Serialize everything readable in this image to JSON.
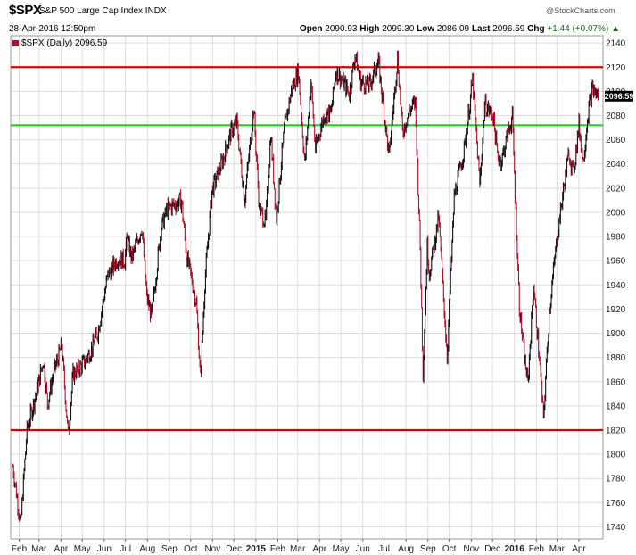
{
  "header": {
    "symbol": "$SPX",
    "description": "S&P 500 Large Cap Index INDX",
    "credit": "@StockCharts.com",
    "date": "28-Apr-2016 12:50pm",
    "open_label": "Open",
    "open": "2090.93",
    "high_label": "High",
    "high": "2099.30",
    "low_label": "Low",
    "low": "2086.09",
    "last_label": "Last",
    "last": "2096.59",
    "chg_label": "Chg",
    "chg": "+1.44 (+0.07%)",
    "legend": "$SPX (Daily) 2096.59",
    "last_tag": "2096.59"
  },
  "colors": {
    "up": "#111111",
    "down": "#b0102a",
    "resistance": "#e00000",
    "support_mid": "#22cc22",
    "support_low": "#e00000",
    "grid": "#dddddd"
  },
  "chart_data": {
    "type": "line",
    "title": "$SPX (Daily)",
    "y_axis_side": "right",
    "ylim": [
      1730,
      2146
    ],
    "y_ticks": [
      1740,
      1760,
      1780,
      1800,
      1820,
      1840,
      1860,
      1880,
      1900,
      1920,
      1940,
      1960,
      1980,
      2000,
      2020,
      2040,
      2060,
      2080,
      2100,
      2120,
      2140
    ],
    "x_ticks": [
      "Feb",
      "Mar",
      "Apr",
      "May",
      "Jun",
      "Jul",
      "Aug",
      "Sep",
      "Oct",
      "Nov",
      "Dec",
      "2015",
      "Feb",
      "Mar",
      "Apr",
      "May",
      "Jun",
      "Jul",
      "Aug",
      "Sep",
      "Oct",
      "Nov",
      "Dec",
      "2016",
      "Feb",
      "Mar",
      "Apr"
    ],
    "x_tick_dates": [
      "2014-02-01",
      "2014-03-01",
      "2014-04-01",
      "2014-05-01",
      "2014-06-01",
      "2014-07-01",
      "2014-08-01",
      "2014-09-01",
      "2014-10-01",
      "2014-11-01",
      "2014-12-01",
      "2015-01-01",
      "2015-02-01",
      "2015-03-01",
      "2015-04-01",
      "2015-05-01",
      "2015-06-01",
      "2015-07-01",
      "2015-08-01",
      "2015-09-01",
      "2015-10-01",
      "2015-11-01",
      "2015-12-01",
      "2016-01-01",
      "2016-02-01",
      "2016-03-01",
      "2016-04-01"
    ],
    "x_range": [
      "2014-01-20",
      "2016-05-05"
    ],
    "grid": true,
    "horizontal_lines": [
      {
        "value": 2120,
        "color": "red"
      },
      {
        "value": 2072,
        "color": "green"
      },
      {
        "value": 1820,
        "color": "red"
      }
    ],
    "series": [
      {
        "name": "$SPX",
        "x": [
          "2014-01-23",
          "2014-02-03",
          "2014-02-12",
          "2014-02-28",
          "2014-03-07",
          "2014-03-13",
          "2014-03-21",
          "2014-04-02",
          "2014-04-11",
          "2014-04-18",
          "2014-04-28",
          "2014-05-06",
          "2014-05-15",
          "2014-05-23",
          "2014-06-06",
          "2014-06-20",
          "2014-06-30",
          "2014-07-03",
          "2014-07-10",
          "2014-07-24",
          "2014-07-31",
          "2014-08-07",
          "2014-08-20",
          "2014-08-29",
          "2014-09-18",
          "2014-09-25",
          "2014-10-02",
          "2014-10-09",
          "2014-10-15",
          "2014-10-21",
          "2014-10-31",
          "2014-11-13",
          "2014-11-28",
          "2014-12-05",
          "2014-12-16",
          "2014-12-29",
          "2015-01-06",
          "2015-01-15",
          "2015-01-22",
          "2015-01-30",
          "2015-02-10",
          "2015-02-20",
          "2015-03-02",
          "2015-03-11",
          "2015-03-20",
          "2015-03-26",
          "2015-04-08",
          "2015-04-17",
          "2015-04-24",
          "2015-05-04",
          "2015-05-13",
          "2015-05-21",
          "2015-05-29",
          "2015-06-10",
          "2015-06-23",
          "2015-07-08",
          "2015-07-20",
          "2015-07-27",
          "2015-08-05",
          "2015-08-14",
          "2015-08-21",
          "2015-08-25",
          "2015-08-31",
          "2015-09-03",
          "2015-09-16",
          "2015-09-28",
          "2015-10-08",
          "2015-10-22",
          "2015-11-03",
          "2015-11-13",
          "2015-11-20",
          "2015-12-02",
          "2015-12-08",
          "2015-12-14",
          "2015-12-22",
          "2015-12-29",
          "2016-01-08",
          "2016-01-15",
          "2016-01-20",
          "2016-01-28",
          "2016-02-05",
          "2016-02-11",
          "2016-02-19",
          "2016-03-01",
          "2016-03-11",
          "2016-03-18",
          "2016-03-24",
          "2016-04-01",
          "2016-04-07",
          "2016-04-14",
          "2016-04-20",
          "2016-04-28"
        ],
        "y": [
          1790,
          1742,
          1820,
          1858,
          1878,
          1842,
          1866,
          1890,
          1816,
          1866,
          1872,
          1878,
          1888,
          1901,
          1948,
          1962,
          1960,
          1978,
          1962,
          1988,
          1930,
          1914,
          1986,
          2003,
          2010,
          1965,
          1946,
          1925,
          1862,
          1942,
          2018,
          2039,
          2068,
          2075,
          2010,
          2086,
          2002,
          1992,
          2065,
          1995,
          2068,
          2100,
          2117,
          2040,
          2108,
          2052,
          2082,
          2082,
          2117,
          2108,
          2098,
          2130,
          2108,
          2105,
          2124,
          2046,
          2128,
          2066,
          2083,
          2091,
          1970,
          1868,
          1972,
          1950,
          1996,
          1881,
          2013,
          2052,
          2109,
          2023,
          2089,
          2080,
          2047,
          2043,
          2064,
          2079,
          1922,
          1880,
          1859,
          1940,
          1880,
          1829,
          1917,
          1979,
          2022,
          2050,
          2032,
          2072,
          2042,
          2083,
          2102,
          2096
        ]
      }
    ]
  }
}
